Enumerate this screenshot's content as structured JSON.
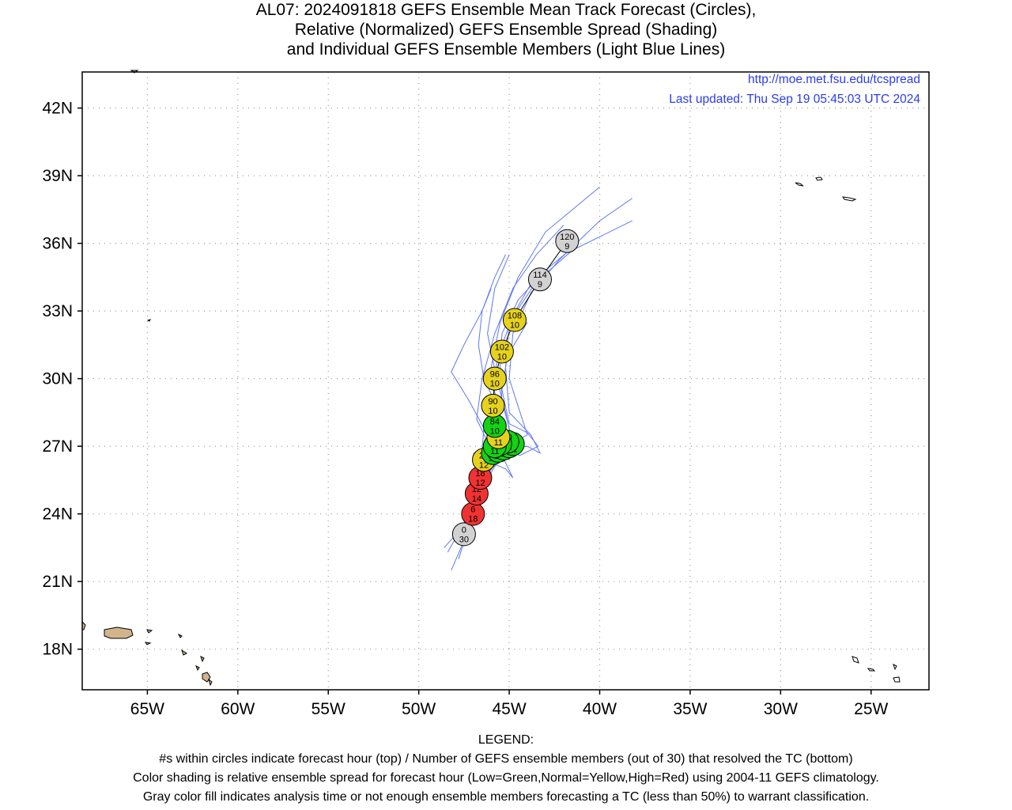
{
  "title": {
    "line1": "AL07: 2024091818 GEFS Ensemble Mean Track Forecast (Circles),",
    "line2": "Relative (Normalized) GEFS Ensemble Spread (Shading)",
    "line3": "and Individual GEFS Ensemble Members (Light Blue Lines)"
  },
  "credits": {
    "url": "http://moe.met.fsu.edu/tcspread",
    "updated": "Last updated: Thu Sep 19 05:45:03 UTC 2024"
  },
  "axes": {
    "lat_ticks": [
      {
        "value": 42,
        "label": "42N"
      },
      {
        "value": 39,
        "label": "39N"
      },
      {
        "value": 36,
        "label": "36N"
      },
      {
        "value": 33,
        "label": "33N"
      },
      {
        "value": 30,
        "label": "30N"
      },
      {
        "value": 27,
        "label": "27N"
      },
      {
        "value": 24,
        "label": "24N"
      },
      {
        "value": 21,
        "label": "21N"
      },
      {
        "value": 18,
        "label": "18N"
      }
    ],
    "lon_ticks": [
      {
        "value": -65,
        "label": "65W"
      },
      {
        "value": -60,
        "label": "60W"
      },
      {
        "value": -55,
        "label": "55W"
      },
      {
        "value": -50,
        "label": "50W"
      },
      {
        "value": -45,
        "label": "45W"
      },
      {
        "value": -40,
        "label": "40W"
      },
      {
        "value": -35,
        "label": "35W"
      },
      {
        "value": -30,
        "label": "30W"
      },
      {
        "value": -25,
        "label": "25W"
      }
    ],
    "lon_range": [
      -68.6,
      -21.8
    ],
    "lat_range": [
      16.2,
      43.6
    ],
    "grid": "dotted"
  },
  "colors": {
    "low_spread": "#14d214",
    "normal_spread": "#e6d21e",
    "high_spread": "#f03232",
    "insufficient": "#d2d2d2",
    "member_lines": "#5f78f0",
    "land": "#d2b48c"
  },
  "chart_data": {
    "type": "map-track",
    "mean_track": [
      {
        "hour": "0",
        "members": "30",
        "lon": -47.5,
        "lat": 23.1,
        "spread": "gray"
      },
      {
        "hour": "6",
        "members": "18",
        "lon": -47.0,
        "lat": 24.0,
        "spread": "high"
      },
      {
        "hour": "12",
        "members": "14",
        "lon": -46.8,
        "lat": 24.9,
        "spread": "high"
      },
      {
        "hour": "18",
        "members": "12",
        "lon": -46.6,
        "lat": 25.6,
        "spread": "high"
      },
      {
        "hour": "24",
        "members": "12",
        "lon": -46.4,
        "lat": 26.4,
        "spread": "normal"
      },
      {
        "hour": "30",
        "members": "11",
        "lon": -45.9,
        "lat": 26.7,
        "spread": "low"
      },
      {
        "hour": "36",
        "members": "11",
        "lon": -45.6,
        "lat": 26.8,
        "spread": "low"
      },
      {
        "hour": "42",
        "members": "11",
        "lon": -45.3,
        "lat": 26.9,
        "spread": "low"
      },
      {
        "hour": "48",
        "members": "11",
        "lon": -45.0,
        "lat": 27.0,
        "spread": "low"
      },
      {
        "hour": "54",
        "members": "11",
        "lon": -44.8,
        "lat": 27.1,
        "spread": "low"
      },
      {
        "hour": "60",
        "members": "11",
        "lon": -45.1,
        "lat": 27.2,
        "spread": "low"
      },
      {
        "hour": "66",
        "members": "11",
        "lon": -45.5,
        "lat": 27.1,
        "spread": "low"
      },
      {
        "hour": "72",
        "members": "11",
        "lon": -45.8,
        "lat": 27.0,
        "spread": "low"
      },
      {
        "hour": "78",
        "members": "11",
        "lon": -45.6,
        "lat": 27.4,
        "spread": "normal"
      },
      {
        "hour": "84",
        "members": "10",
        "lon": -45.8,
        "lat": 27.9,
        "spread": "low"
      },
      {
        "hour": "90",
        "members": "10",
        "lon": -45.9,
        "lat": 28.8,
        "spread": "normal"
      },
      {
        "hour": "96",
        "members": "10",
        "lon": -45.8,
        "lat": 30.0,
        "spread": "normal"
      },
      {
        "hour": "102",
        "members": "10",
        "lon": -45.4,
        "lat": 31.2,
        "spread": "normal"
      },
      {
        "hour": "108",
        "members": "10",
        "lon": -44.7,
        "lat": 32.6,
        "spread": "normal"
      },
      {
        "hour": "114",
        "members": "9",
        "lon": -43.3,
        "lat": 34.4,
        "spread": "gray"
      },
      {
        "hour": "120",
        "members": "9",
        "lon": -41.8,
        "lat": 36.1,
        "spread": "gray"
      }
    ],
    "ensemble_members": [
      [
        [
          -48.2,
          21.5
        ],
        [
          -47.4,
          23.0
        ],
        [
          -46.8,
          24.4
        ],
        [
          -46.4,
          25.6
        ],
        [
          -46.3,
          26.5
        ],
        [
          -45.9,
          27.0
        ],
        [
          -45.6,
          27.5
        ],
        [
          -45.8,
          29.0
        ],
        [
          -46.0,
          30.5
        ],
        [
          -45.5,
          32.5
        ],
        [
          -44.5,
          34.5
        ],
        [
          -43.0,
          36.5
        ],
        [
          -40.0,
          38.5
        ]
      ],
      [
        [
          -48.6,
          22.5
        ],
        [
          -47.6,
          23.4
        ],
        [
          -47.0,
          24.6
        ],
        [
          -46.5,
          25.8
        ],
        [
          -46.0,
          26.8
        ],
        [
          -45.3,
          27.2
        ],
        [
          -44.8,
          27.0
        ],
        [
          -45.2,
          28.5
        ],
        [
          -45.7,
          30.0
        ],
        [
          -46.2,
          32.0
        ],
        [
          -45.8,
          34.0
        ],
        [
          -45.0,
          35.5
        ]
      ],
      [
        [
          -48.4,
          22.3
        ],
        [
          -47.5,
          23.6
        ],
        [
          -46.9,
          24.8
        ],
        [
          -46.6,
          25.9
        ],
        [
          -46.5,
          26.8
        ],
        [
          -46.4,
          27.8
        ],
        [
          -47.2,
          29.0
        ],
        [
          -48.2,
          30.3
        ],
        [
          -47.5,
          31.5
        ],
        [
          -46.5,
          33.0
        ],
        [
          -46.0,
          34.0
        ]
      ],
      [
        [
          -47.8,
          22.0
        ],
        [
          -47.2,
          23.5
        ],
        [
          -46.7,
          24.5
        ],
        [
          -46.2,
          25.5
        ],
        [
          -45.7,
          26.3
        ],
        [
          -45.0,
          26.8
        ],
        [
          -44.5,
          27.3
        ],
        [
          -44.0,
          27.5
        ],
        [
          -44.4,
          28.5
        ],
        [
          -45.0,
          30.0
        ],
        [
          -44.8,
          32.0
        ],
        [
          -43.8,
          33.8
        ],
        [
          -42.2,
          35.3
        ],
        [
          -40.0,
          37.0
        ],
        [
          -38.2,
          38.0
        ]
      ],
      [
        [
          -47.6,
          22.6
        ],
        [
          -46.9,
          24.0
        ],
        [
          -46.4,
          25.4
        ],
        [
          -45.8,
          26.4
        ],
        [
          -45.0,
          26.9
        ],
        [
          -44.0,
          27.0
        ],
        [
          -43.3,
          26.7
        ],
        [
          -43.8,
          27.5
        ],
        [
          -45.0,
          28.5
        ],
        [
          -45.2,
          30.5
        ],
        [
          -45.0,
          32.5
        ],
        [
          -43.5,
          34.3
        ],
        [
          -41.5,
          35.7
        ],
        [
          -38.2,
          37.0
        ]
      ],
      [
        [
          -46.5,
          25.2
        ],
        [
          -46.6,
          26.3
        ],
        [
          -46.0,
          27.0
        ],
        [
          -45.5,
          27.8
        ],
        [
          -45.7,
          28.8
        ],
        [
          -46.4,
          30.0
        ],
        [
          -46.7,
          31.5
        ],
        [
          -46.5,
          33.0
        ],
        [
          -45.8,
          34.5
        ],
        [
          -45.2,
          35.5
        ]
      ],
      [
        [
          -46.8,
          25.0
        ],
        [
          -46.2,
          26.0
        ],
        [
          -45.7,
          26.6
        ],
        [
          -45.0,
          26.5
        ],
        [
          -44.6,
          26.8
        ],
        [
          -45.0,
          27.8
        ],
        [
          -45.4,
          29.0
        ],
        [
          -45.5,
          30.5
        ],
        [
          -45.4,
          32.0
        ],
        [
          -44.5,
          33.5
        ],
        [
          -43.0,
          34.8
        ],
        [
          -41.5,
          35.8
        ]
      ],
      [
        [
          -47.2,
          24.4
        ],
        [
          -46.4,
          25.5
        ],
        [
          -45.8,
          26.2
        ],
        [
          -45.2,
          26.0
        ],
        [
          -44.8,
          25.6
        ],
        [
          -45.4,
          26.6
        ],
        [
          -46.2,
          27.2
        ],
        [
          -46.8,
          28.2
        ],
        [
          -46.5,
          30.0
        ],
        [
          -45.8,
          32.0
        ],
        [
          -44.8,
          34.0
        ],
        [
          -43.5,
          35.5
        ],
        [
          -42.0,
          36.8
        ]
      ],
      [
        [
          -46.6,
          25.8
        ],
        [
          -46.0,
          26.5
        ],
        [
          -45.3,
          26.8
        ],
        [
          -44.4,
          26.6
        ],
        [
          -43.4,
          27.0
        ],
        [
          -44.0,
          27.6
        ],
        [
          -45.0,
          28.0
        ],
        [
          -45.4,
          29.5
        ],
        [
          -45.1,
          31.0
        ],
        [
          -44.0,
          32.5
        ]
      ],
      [
        [
          -47.0,
          26.7
        ],
        [
          -46.4,
          26.4
        ],
        [
          -45.8,
          26.1
        ],
        [
          -45.4,
          26.6
        ],
        [
          -45.2,
          27.6
        ],
        [
          -45.6,
          28.6
        ],
        [
          -45.9,
          29.8
        ],
        [
          -45.6,
          31.0
        ],
        [
          -44.8,
          32.8
        ],
        [
          -43.8,
          34.2
        ]
      ]
    ]
  },
  "legend": {
    "heading": "LEGEND:",
    "line1": "#s within circles indicate forecast hour (top) / Number of GEFS ensemble members (out of 30) that resolved the TC (bottom)",
    "line2": "Color shading is relative ensemble spread for forecast hour (Low=Green,Normal=Yellow,High=Red) using 2004-11 GEFS climatology.",
    "line3": "Gray color fill indicates analysis time or not enough ensemble members forecasting a TC (less than 50%) to warrant classification."
  }
}
